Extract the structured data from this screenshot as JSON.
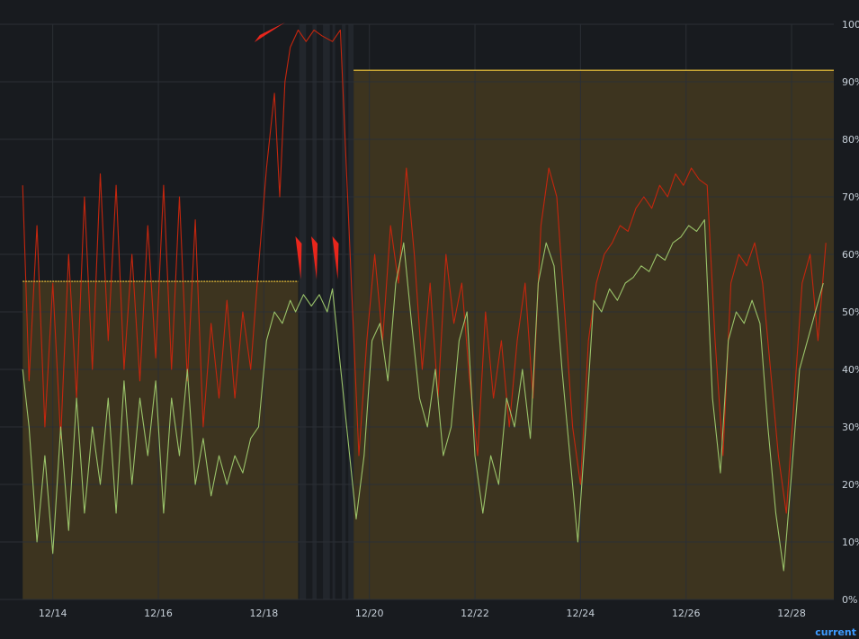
{
  "chart_data": {
    "type": "line",
    "xlim": [
      0.0,
      15.8
    ],
    "ylim": [
      0,
      100
    ],
    "x_ticks": [
      {
        "x": 1,
        "label": "12/14"
      },
      {
        "x": 3,
        "label": "12/16"
      },
      {
        "x": 5,
        "label": "12/18"
      },
      {
        "x": 7,
        "label": "12/20"
      },
      {
        "x": 9,
        "label": "12/22"
      },
      {
        "x": 11,
        "label": "12/24"
      },
      {
        "x": 13,
        "label": "12/26"
      },
      {
        "x": 15,
        "label": "12/28"
      }
    ],
    "y_ticks": [
      {
        "y": 0,
        "label": "0%"
      },
      {
        "y": 10,
        "label": "10%"
      },
      {
        "y": 20,
        "label": "20%"
      },
      {
        "y": 30,
        "label": "30%"
      },
      {
        "y": 40,
        "label": "40%"
      },
      {
        "y": 50,
        "label": "50%"
      },
      {
        "y": 60,
        "label": "60%"
      },
      {
        "y": 70,
        "label": "70%"
      },
      {
        "y": 80,
        "label": "80%"
      },
      {
        "y": 90,
        "label": "90%"
      },
      {
        "y": 100,
        "label": "100%"
      }
    ],
    "grid": true,
    "series": [
      {
        "color": "#c4260e",
        "points": [
          [
            0.43,
            72
          ],
          [
            0.55,
            38
          ],
          [
            0.7,
            65
          ],
          [
            0.85,
            30
          ],
          [
            1.0,
            55
          ],
          [
            1.15,
            28
          ],
          [
            1.3,
            60
          ],
          [
            1.45,
            35
          ],
          [
            1.6,
            70
          ],
          [
            1.75,
            40
          ],
          [
            1.9,
            74
          ],
          [
            2.05,
            45
          ],
          [
            2.2,
            72
          ],
          [
            2.35,
            40
          ],
          [
            2.5,
            60
          ],
          [
            2.65,
            38
          ],
          [
            2.8,
            65
          ],
          [
            2.95,
            42
          ],
          [
            3.1,
            72
          ],
          [
            3.25,
            40
          ],
          [
            3.4,
            70
          ],
          [
            3.55,
            38
          ],
          [
            3.7,
            66
          ],
          [
            3.85,
            30
          ],
          [
            4.0,
            48
          ],
          [
            4.15,
            35
          ],
          [
            4.3,
            52
          ],
          [
            4.45,
            35
          ],
          [
            4.6,
            50
          ],
          [
            4.75,
            40
          ],
          [
            4.9,
            58
          ],
          [
            5.05,
            75
          ],
          [
            5.2,
            88
          ],
          [
            5.3,
            70
          ],
          [
            5.4,
            90
          ],
          [
            5.5,
            96
          ],
          [
            5.65,
            99
          ],
          [
            5.8,
            97
          ],
          [
            5.95,
            99
          ],
          [
            6.1,
            98
          ],
          [
            6.3,
            97
          ],
          [
            6.45,
            99
          ],
          [
            6.8,
            25
          ],
          [
            6.95,
            45
          ],
          [
            7.1,
            60
          ],
          [
            7.25,
            45
          ],
          [
            7.4,
            65
          ],
          [
            7.55,
            55
          ],
          [
            7.7,
            75
          ],
          [
            7.85,
            60
          ],
          [
            8.0,
            40
          ],
          [
            8.15,
            55
          ],
          [
            8.3,
            35
          ],
          [
            8.45,
            60
          ],
          [
            8.6,
            48
          ],
          [
            8.75,
            55
          ],
          [
            8.9,
            38
          ],
          [
            9.05,
            25
          ],
          [
            9.2,
            50
          ],
          [
            9.35,
            35
          ],
          [
            9.5,
            45
          ],
          [
            9.65,
            30
          ],
          [
            9.8,
            45
          ],
          [
            9.95,
            55
          ],
          [
            10.1,
            35
          ],
          [
            10.25,
            65
          ],
          [
            10.4,
            75
          ],
          [
            10.55,
            70
          ],
          [
            10.7,
            50
          ],
          [
            10.85,
            30
          ],
          [
            11.0,
            20
          ],
          [
            11.15,
            45
          ],
          [
            11.3,
            55
          ],
          [
            11.45,
            60
          ],
          [
            11.6,
            62
          ],
          [
            11.75,
            65
          ],
          [
            11.9,
            64
          ],
          [
            12.05,
            68
          ],
          [
            12.2,
            70
          ],
          [
            12.35,
            68
          ],
          [
            12.5,
            72
          ],
          [
            12.65,
            70
          ],
          [
            12.8,
            74
          ],
          [
            12.95,
            72
          ],
          [
            13.1,
            75
          ],
          [
            13.25,
            73
          ],
          [
            13.4,
            72
          ],
          [
            13.55,
            45
          ],
          [
            13.7,
            25
          ],
          [
            13.85,
            55
          ],
          [
            14.0,
            60
          ],
          [
            14.15,
            58
          ],
          [
            14.3,
            62
          ],
          [
            14.45,
            55
          ],
          [
            14.6,
            40
          ],
          [
            14.75,
            25
          ],
          [
            14.9,
            15
          ],
          [
            15.05,
            35
          ],
          [
            15.2,
            55
          ],
          [
            15.35,
            60
          ],
          [
            15.5,
            45
          ],
          [
            15.65,
            62
          ]
        ]
      },
      {
        "color": "#9ac36a",
        "points": [
          [
            0.43,
            40
          ],
          [
            0.55,
            30
          ],
          [
            0.7,
            10
          ],
          [
            0.85,
            25
          ],
          [
            1.0,
            8
          ],
          [
            1.15,
            30
          ],
          [
            1.3,
            12
          ],
          [
            1.45,
            35
          ],
          [
            1.6,
            15
          ],
          [
            1.75,
            30
          ],
          [
            1.9,
            20
          ],
          [
            2.05,
            35
          ],
          [
            2.2,
            15
          ],
          [
            2.35,
            38
          ],
          [
            2.5,
            20
          ],
          [
            2.65,
            35
          ],
          [
            2.8,
            25
          ],
          [
            2.95,
            38
          ],
          [
            3.1,
            15
          ],
          [
            3.25,
            35
          ],
          [
            3.4,
            25
          ],
          [
            3.55,
            40
          ],
          [
            3.7,
            20
          ],
          [
            3.85,
            28
          ],
          [
            4.0,
            18
          ],
          [
            4.15,
            25
          ],
          [
            4.3,
            20
          ],
          [
            4.45,
            25
          ],
          [
            4.6,
            22
          ],
          [
            4.75,
            28
          ],
          [
            4.9,
            30
          ],
          [
            5.05,
            45
          ],
          [
            5.2,
            50
          ],
          [
            5.35,
            48
          ],
          [
            5.5,
            52
          ],
          [
            5.6,
            50
          ],
          [
            5.75,
            53
          ],
          [
            5.9,
            51
          ],
          [
            6.05,
            53
          ],
          [
            6.2,
            50
          ],
          [
            6.3,
            54
          ],
          [
            6.75,
            14
          ],
          [
            6.9,
            25
          ],
          [
            7.05,
            45
          ],
          [
            7.2,
            48
          ],
          [
            7.35,
            38
          ],
          [
            7.5,
            55
          ],
          [
            7.65,
            62
          ],
          [
            7.8,
            48
          ],
          [
            7.95,
            35
          ],
          [
            8.1,
            30
          ],
          [
            8.25,
            40
          ],
          [
            8.4,
            25
          ],
          [
            8.55,
            30
          ],
          [
            8.7,
            45
          ],
          [
            8.85,
            50
          ],
          [
            9.0,
            25
          ],
          [
            9.15,
            15
          ],
          [
            9.3,
            25
          ],
          [
            9.45,
            20
          ],
          [
            9.6,
            35
          ],
          [
            9.75,
            30
          ],
          [
            9.9,
            40
          ],
          [
            10.05,
            28
          ],
          [
            10.2,
            55
          ],
          [
            10.35,
            62
          ],
          [
            10.5,
            58
          ],
          [
            10.65,
            40
          ],
          [
            10.8,
            25
          ],
          [
            10.95,
            10
          ],
          [
            11.1,
            30
          ],
          [
            11.25,
            52
          ],
          [
            11.4,
            50
          ],
          [
            11.55,
            54
          ],
          [
            11.7,
            52
          ],
          [
            11.85,
            55
          ],
          [
            12.0,
            56
          ],
          [
            12.15,
            58
          ],
          [
            12.3,
            57
          ],
          [
            12.45,
            60
          ],
          [
            12.6,
            59
          ],
          [
            12.75,
            62
          ],
          [
            12.9,
            63
          ],
          [
            13.05,
            65
          ],
          [
            13.2,
            64
          ],
          [
            13.35,
            66
          ],
          [
            13.5,
            35
          ],
          [
            13.65,
            22
          ],
          [
            13.8,
            45
          ],
          [
            13.95,
            50
          ],
          [
            14.1,
            48
          ],
          [
            14.25,
            52
          ],
          [
            14.4,
            48
          ],
          [
            14.55,
            30
          ],
          [
            14.7,
            15
          ],
          [
            14.85,
            5
          ],
          [
            15.0,
            22
          ],
          [
            15.15,
            40
          ],
          [
            15.3,
            45
          ],
          [
            15.45,
            50
          ],
          [
            15.6,
            55
          ]
        ]
      }
    ],
    "thresholds": [
      {
        "x_start": 0.43,
        "x_end": 5.65,
        "y": 55.3
      },
      {
        "x_start": 6.7,
        "x_end": 15.8,
        "y": 92
      }
    ],
    "no_data_gaps": [
      [
        5.67,
        5.8
      ],
      [
        5.92,
        6.0
      ],
      [
        6.12,
        6.25
      ],
      [
        6.3,
        6.35
      ],
      [
        6.48,
        6.55
      ],
      [
        6.6,
        6.7
      ]
    ]
  },
  "colors": {
    "background": "#181b1f",
    "grid": "#2b2f35",
    "threshold_line": "#c9a635",
    "threshold_fill": "#4a3e20",
    "annotation_arrow": "#e8261c"
  },
  "annotations": [
    {
      "type": "arrow",
      "at_x": 5.4,
      "at_y": 100
    },
    {
      "type": "arrow",
      "at_x": 5.7,
      "at_y": 55
    },
    {
      "type": "arrow",
      "at_x": 6.0,
      "at_y": 55
    },
    {
      "type": "arrow",
      "at_x": 6.4,
      "at_y": 55
    }
  ],
  "legend": {
    "current_label": "current"
  }
}
